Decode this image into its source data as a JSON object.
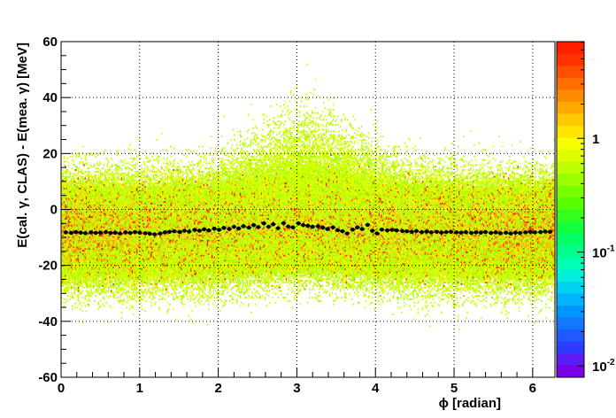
{
  "chart_data": {
    "type": "heatmap",
    "xlabel": "ϕ [radian]",
    "ylabel": "E(cal. γ, CLAS) - E(mea. γ) [MeV]",
    "xlim": [
      0,
      6.2832
    ],
    "ylim": [
      -60,
      60
    ],
    "x_ticks": [
      "0",
      "1",
      "2",
      "3",
      "4",
      "5",
      "6"
    ],
    "y_ticks": [
      "-60",
      "-40",
      "-20",
      "0",
      "20",
      "40",
      "60"
    ],
    "grid": true,
    "colorbar": {
      "scale": "log",
      "ticks": [
        {
          "value": 1,
          "text": "1",
          "exponent": ""
        },
        {
          "value": 0.1,
          "text": "10",
          "exponent": "-1"
        },
        {
          "value": 0.01,
          "text": "10",
          "exponent": "-2"
        }
      ],
      "colors": [
        "#7b00e6",
        "#5a1ef5",
        "#2d3cff",
        "#1e5aff",
        "#1478ff",
        "#0096ff",
        "#00b4ff",
        "#00d2f0",
        "#00f0dc",
        "#00ffb4",
        "#00ff8c",
        "#00ff64",
        "#14ff3c",
        "#32ff1e",
        "#55ff00",
        "#78ff00",
        "#9bff00",
        "#beff00",
        "#ddff00",
        "#f5ff00",
        "#ffe600",
        "#ffc800",
        "#ffaa00",
        "#ff8c00",
        "#ff6e00",
        "#ff5000",
        "#ff3200",
        "#ff1e00"
      ]
    },
    "density": {
      "band_center_mev": -8,
      "band_halfwidth_mev": 26,
      "peak_phi": 3.14,
      "peak_extension_mev": 18,
      "dense_edges": "low and high ϕ"
    },
    "profile_series": {
      "name": "",
      "x": [
        0.06,
        0.13,
        0.19,
        0.25,
        0.31,
        0.38,
        0.44,
        0.5,
        0.57,
        0.63,
        0.69,
        0.75,
        0.82,
        0.88,
        0.94,
        1.0,
        1.07,
        1.13,
        1.19,
        1.26,
        1.32,
        1.38,
        1.44,
        1.51,
        1.57,
        1.63,
        1.7,
        1.76,
        1.82,
        1.88,
        1.95,
        2.01,
        2.07,
        2.14,
        2.2,
        2.26,
        2.32,
        2.39,
        2.45,
        2.51,
        2.58,
        2.64,
        2.7,
        2.76,
        2.83,
        2.89,
        2.95,
        3.02,
        3.08,
        3.14,
        3.2,
        3.27,
        3.33,
        3.39,
        3.46,
        3.52,
        3.58,
        3.64,
        3.71,
        3.77,
        3.83,
        3.9,
        3.96,
        4.02,
        4.08,
        4.15,
        4.21,
        4.27,
        4.34,
        4.4,
        4.46,
        4.52,
        4.59,
        4.65,
        4.71,
        4.78,
        4.84,
        4.9,
        4.96,
        5.03,
        5.09,
        5.15,
        5.22,
        5.28,
        5.34,
        5.4,
        5.47,
        5.53,
        5.59,
        5.66,
        5.72,
        5.78,
        5.84,
        5.91,
        5.97,
        6.03,
        6.1,
        6.16,
        6.22
      ],
      "y": [
        -8.2,
        -8.4,
        -8.1,
        -8.3,
        -8.5,
        -8.2,
        -8.4,
        -8.3,
        -8.1,
        -8.4,
        -8.3,
        -8.6,
        -8.2,
        -8.4,
        -8.1,
        -8.3,
        -8.5,
        -8.7,
        -8.9,
        -8.6,
        -8.2,
        -8.0,
        -7.8,
        -8.1,
        -7.6,
        -7.9,
        -7.3,
        -7.6,
        -7.1,
        -7.5,
        -6.9,
        -7.3,
        -6.6,
        -7.0,
        -6.2,
        -6.8,
        -6.0,
        -6.5,
        -5.6,
        -6.3,
        -5.0,
        -6.2,
        -5.3,
        -6.7,
        -4.9,
        -6.1,
        -6.4,
        -5.0,
        -5.6,
        -5.8,
        -6.2,
        -6.0,
        -6.5,
        -7.0,
        -6.4,
        -7.4,
        -7.8,
        -8.6,
        -7.2,
        -6.4,
        -7.0,
        -5.5,
        -7.6,
        -8.6,
        -7.2,
        -7.5,
        -7.3,
        -7.5,
        -7.7,
        -7.8,
        -8.0,
        -7.7,
        -8.1,
        -7.9,
        -8.2,
        -8.0,
        -8.3,
        -8.1,
        -8.0,
        -8.2,
        -8.3,
        -8.1,
        -8.4,
        -8.2,
        -8.3,
        -8.1,
        -8.4,
        -8.2,
        -8.5,
        -8.3,
        -8.6,
        -8.3,
        -8.4,
        -8.2,
        -8.0,
        -8.2,
        -8.1,
        -7.9,
        -8.0
      ]
    }
  }
}
